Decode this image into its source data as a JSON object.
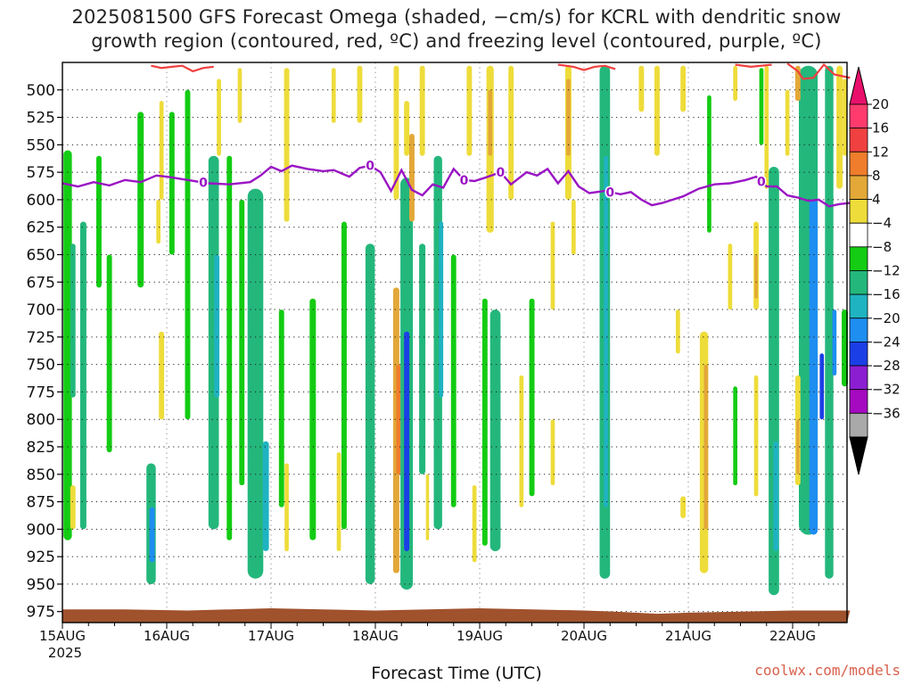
{
  "title_line1": "2025081500 GFS Forecast Omega (shaded, −cm/s) for KCRL with dendritic snow",
  "title_line2": "growth region (contoured, red, ºC) and freezing level (contoured, purple, ºC)",
  "credit": "coolwx.com/models",
  "chart_data": {
    "type": "heatmap",
    "xlabel": "Forecast Time (UTC)",
    "x_ticks": [
      "15AUG",
      "16AUG",
      "17AUG",
      "18AUG",
      "19AUG",
      "20AUG",
      "21AUG",
      "22AUG"
    ],
    "x_year_label": "2025",
    "y_ticks": [
      500,
      525,
      550,
      575,
      600,
      625,
      650,
      675,
      700,
      725,
      750,
      775,
      800,
      825,
      850,
      875,
      900,
      925,
      950,
      975
    ],
    "ylim": [
      475,
      985
    ],
    "xlim": [
      0,
      7.55
    ],
    "colorbar": {
      "labels": [
        "20",
        "16",
        "12",
        "8",
        "4",
        "−4",
        "−8",
        "−12",
        "−16",
        "−20",
        "−24",
        "−28",
        "−32",
        "−36"
      ],
      "colors": [
        "#ff3b6e",
        "#f04040",
        "#ef7d2c",
        "#e3a838",
        "#eedc3a",
        "#ffffff",
        "#13cc13",
        "#23b77c",
        "#1fb3c1",
        "#1e8ef0",
        "#1b3fe6",
        "#8c1ed2",
        "#a50ac0",
        "#a9a9a9",
        "#000000"
      ],
      "top_arrow_color": "#e8106a",
      "bottom_arrow_color": "#000000"
    },
    "freezing_level": {
      "color": "#9a14c4",
      "label": "0",
      "points": [
        [
          0,
          585
        ],
        [
          0.15,
          588
        ],
        [
          0.3,
          584
        ],
        [
          0.45,
          587
        ],
        [
          0.6,
          582
        ],
        [
          0.75,
          584
        ],
        [
          0.9,
          578
        ],
        [
          1.0,
          579
        ],
        [
          1.2,
          582
        ],
        [
          1.4,
          585
        ],
        [
          1.6,
          586
        ],
        [
          1.8,
          584
        ],
        [
          1.9,
          578
        ],
        [
          2.0,
          570
        ],
        [
          2.1,
          574
        ],
        [
          2.2,
          569
        ],
        [
          2.35,
          572
        ],
        [
          2.5,
          574
        ],
        [
          2.6,
          573
        ],
        [
          2.75,
          579
        ],
        [
          2.85,
          571
        ],
        [
          2.95,
          569
        ],
        [
          3.05,
          575
        ],
        [
          3.15,
          592
        ],
        [
          3.25,
          573
        ],
        [
          3.35,
          591
        ],
        [
          3.45,
          596
        ],
        [
          3.55,
          586
        ],
        [
          3.65,
          589
        ],
        [
          3.75,
          572
        ],
        [
          3.85,
          582
        ],
        [
          3.95,
          583
        ],
        [
          4.05,
          580
        ],
        [
          4.2,
          575
        ],
        [
          4.3,
          586
        ],
        [
          4.45,
          575
        ],
        [
          4.55,
          578
        ],
        [
          4.65,
          572
        ],
        [
          4.75,
          585
        ],
        [
          4.85,
          574
        ],
        [
          4.95,
          588
        ],
        [
          5.05,
          594
        ],
        [
          5.2,
          592
        ],
        [
          5.35,
          595
        ],
        [
          5.45,
          593
        ],
        [
          5.55,
          600
        ],
        [
          5.65,
          605
        ],
        [
          5.75,
          603
        ],
        [
          5.85,
          600
        ],
        [
          5.95,
          597
        ],
        [
          6.1,
          590
        ],
        [
          6.25,
          586
        ],
        [
          6.4,
          585
        ],
        [
          6.55,
          582
        ],
        [
          6.65,
          579
        ],
        [
          6.75,
          588
        ],
        [
          6.85,
          588
        ],
        [
          6.95,
          596
        ],
        [
          7.05,
          598
        ],
        [
          7.15,
          601
        ],
        [
          7.25,
          600
        ],
        [
          7.35,
          606
        ],
        [
          7.45,
          604
        ],
        [
          7.55,
          603
        ]
      ],
      "label_x": [
        1.35,
        2.95,
        3.85,
        4.2,
        5.25,
        6.7
      ]
    },
    "dgz_top": {
      "color": "#f04040",
      "segments": [
        [
          [
            0.85,
            478
          ],
          [
            0.95,
            480
          ],
          [
            1.05,
            479
          ],
          [
            1.15,
            478
          ],
          [
            1.25,
            483
          ],
          [
            1.35,
            480
          ],
          [
            1.45,
            479
          ]
        ],
        [
          [
            4.75,
            477
          ],
          [
            4.9,
            479
          ],
          [
            5.0,
            482
          ],
          [
            5.1,
            479
          ],
          [
            5.2,
            478
          ],
          [
            5.3,
            481
          ]
        ],
        [
          [
            6.45,
            477
          ],
          [
            6.6,
            479
          ],
          [
            6.8,
            477
          ]
        ],
        [
          [
            6.95,
            476
          ],
          [
            7.05,
            483
          ],
          [
            7.1,
            490
          ],
          [
            7.2,
            489
          ],
          [
            7.3,
            477
          ],
          [
            7.4,
            486
          ],
          [
            7.5,
            488
          ],
          [
            7.55,
            489
          ]
        ]
      ]
    },
    "omega_cells": [
      {
        "x": 0.05,
        "p0": 555,
        "p1": 910,
        "w": 0.08,
        "v": -6
      },
      {
        "x": 0.1,
        "p0": 640,
        "p1": 780,
        "w": 0.05,
        "v": -10
      },
      {
        "x": 0.2,
        "p0": 620,
        "p1": 900,
        "w": 0.06,
        "v": -8
      },
      {
        "x": 0.35,
        "p0": 560,
        "p1": 680,
        "w": 0.05,
        "v": -6
      },
      {
        "x": 0.45,
        "p0": 650,
        "p1": 830,
        "w": 0.05,
        "v": -7
      },
      {
        "x": 0.75,
        "p0": 520,
        "p1": 680,
        "w": 0.06,
        "v": -7
      },
      {
        "x": 0.85,
        "p0": 840,
        "p1": 950,
        "w": 0.09,
        "v": -8
      },
      {
        "x": 0.86,
        "p0": 880,
        "p1": 930,
        "w": 0.05,
        "v": -16
      },
      {
        "x": 1.05,
        "p0": 520,
        "p1": 650,
        "w": 0.05,
        "v": -6
      },
      {
        "x": 1.2,
        "p0": 500,
        "p1": 800,
        "w": 0.05,
        "v": -7
      },
      {
        "x": 1.45,
        "p0": 560,
        "p1": 900,
        "w": 0.1,
        "v": -8
      },
      {
        "x": 1.48,
        "p0": 650,
        "p1": 780,
        "w": 0.05,
        "v": -14
      },
      {
        "x": 1.6,
        "p0": 560,
        "p1": 910,
        "w": 0.05,
        "v": -6
      },
      {
        "x": 1.72,
        "p0": 600,
        "p1": 860,
        "w": 0.05,
        "v": -6
      },
      {
        "x": 1.85,
        "p0": 590,
        "p1": 945,
        "w": 0.15,
        "v": -8
      },
      {
        "x": 1.95,
        "p0": 820,
        "p1": 920,
        "w": 0.06,
        "v": -12
      },
      {
        "x": 2.1,
        "p0": 700,
        "p1": 880,
        "w": 0.05,
        "v": -6
      },
      {
        "x": 2.4,
        "p0": 690,
        "p1": 910,
        "w": 0.06,
        "v": -7
      },
      {
        "x": 2.7,
        "p0": 620,
        "p1": 900,
        "w": 0.05,
        "v": -6
      },
      {
        "x": 2.95,
        "p0": 640,
        "p1": 950,
        "w": 0.09,
        "v": -8
      },
      {
        "x": 3.3,
        "p0": 580,
        "p1": 955,
        "w": 0.12,
        "v": -10
      },
      {
        "x": 3.3,
        "p0": 720,
        "p1": 920,
        "w": 0.05,
        "v": -22
      },
      {
        "x": 3.45,
        "p0": 640,
        "p1": 850,
        "w": 0.06,
        "v": -8
      },
      {
        "x": 3.6,
        "p0": 560,
        "p1": 900,
        "w": 0.08,
        "v": -10
      },
      {
        "x": 3.63,
        "p0": 620,
        "p1": 780,
        "w": 0.04,
        "v": -15
      },
      {
        "x": 3.75,
        "p0": 650,
        "p1": 880,
        "w": 0.05,
        "v": -7
      },
      {
        "x": 4.05,
        "p0": 690,
        "p1": 915,
        "w": 0.05,
        "v": -6
      },
      {
        "x": 4.15,
        "p0": 700,
        "p1": 920,
        "w": 0.1,
        "v": -8
      },
      {
        "x": 4.5,
        "p0": 690,
        "p1": 870,
        "w": 0.05,
        "v": -6
      },
      {
        "x": 5.2,
        "p0": 478,
        "p1": 945,
        "w": 0.1,
        "v": -8
      },
      {
        "x": 5.21,
        "p0": 560,
        "p1": 880,
        "w": 0.04,
        "v": -13
      },
      {
        "x": 6.2,
        "p0": 505,
        "p1": 630,
        "w": 0.04,
        "v": -7
      },
      {
        "x": 6.45,
        "p0": 770,
        "p1": 860,
        "w": 0.04,
        "v": -7
      },
      {
        "x": 6.7,
        "p0": 480,
        "p1": 550,
        "w": 0.04,
        "v": -6
      },
      {
        "x": 6.82,
        "p0": 570,
        "p1": 960,
        "w": 0.1,
        "v": -8
      },
      {
        "x": 6.84,
        "p0": 820,
        "p1": 920,
        "w": 0.05,
        "v": -15
      },
      {
        "x": 7.15,
        "p0": 478,
        "p1": 905,
        "w": 0.18,
        "v": -11
      },
      {
        "x": 7.2,
        "p0": 600,
        "p1": 905,
        "w": 0.08,
        "v": -17
      },
      {
        "x": 7.28,
        "p0": 740,
        "p1": 800,
        "w": 0.04,
        "v": -22
      },
      {
        "x": 7.35,
        "p0": 478,
        "p1": 945,
        "w": 0.08,
        "v": -8
      },
      {
        "x": 7.4,
        "p0": 700,
        "p1": 760,
        "w": 0.04,
        "v": -18
      },
      {
        "x": 7.5,
        "p0": 700,
        "p1": 770,
        "w": 0.06,
        "v": -7
      },
      {
        "x": 0.95,
        "p0": 510,
        "p1": 600,
        "w": 0.04,
        "v": 6
      },
      {
        "x": 0.92,
        "p0": 600,
        "p1": 640,
        "w": 0.04,
        "v": 6
      },
      {
        "x": 0.95,
        "p0": 720,
        "p1": 800,
        "w": 0.05,
        "v": 5
      },
      {
        "x": 0.1,
        "p0": 860,
        "p1": 900,
        "w": 0.05,
        "v": 5
      },
      {
        "x": 1.5,
        "p0": 490,
        "p1": 560,
        "w": 0.04,
        "v": 5
      },
      {
        "x": 1.7,
        "p0": 480,
        "p1": 530,
        "w": 0.04,
        "v": 5
      },
      {
        "x": 2.6,
        "p0": 480,
        "p1": 530,
        "w": 0.04,
        "v": 5
      },
      {
        "x": 2.15,
        "p0": 480,
        "p1": 620,
        "w": 0.05,
        "v": 5
      },
      {
        "x": 2.15,
        "p0": 840,
        "p1": 920,
        "w": 0.04,
        "v": 5
      },
      {
        "x": 2.65,
        "p0": 830,
        "p1": 920,
        "w": 0.04,
        "v": 5
      },
      {
        "x": 2.85,
        "p0": 478,
        "p1": 530,
        "w": 0.05,
        "v": 6
      },
      {
        "x": 3.2,
        "p0": 478,
        "p1": 600,
        "w": 0.05,
        "v": 6
      },
      {
        "x": 3.3,
        "p0": 510,
        "p1": 560,
        "w": 0.05,
        "v": 6
      },
      {
        "x": 3.2,
        "p0": 680,
        "p1": 940,
        "w": 0.06,
        "v": 8
      },
      {
        "x": 3.22,
        "p0": 750,
        "p1": 850,
        "w": 0.04,
        "v": 12
      },
      {
        "x": 3.35,
        "p0": 540,
        "p1": 620,
        "w": 0.05,
        "v": 9
      },
      {
        "x": 3.45,
        "p0": 478,
        "p1": 560,
        "w": 0.05,
        "v": 5
      },
      {
        "x": 3.5,
        "p0": 850,
        "p1": 910,
        "w": 0.03,
        "v": 5
      },
      {
        "x": 3.9,
        "p0": 478,
        "p1": 560,
        "w": 0.05,
        "v": 5
      },
      {
        "x": 3.95,
        "p0": 860,
        "p1": 930,
        "w": 0.04,
        "v": 5
      },
      {
        "x": 4.1,
        "p0": 478,
        "p1": 630,
        "w": 0.07,
        "v": 5
      },
      {
        "x": 4.1,
        "p0": 500,
        "p1": 560,
        "w": 0.04,
        "v": 10
      },
      {
        "x": 4.3,
        "p0": 478,
        "p1": 600,
        "w": 0.05,
        "v": 5
      },
      {
        "x": 4.4,
        "p0": 760,
        "p1": 880,
        "w": 0.04,
        "v": 5
      },
      {
        "x": 4.7,
        "p0": 620,
        "p1": 700,
        "w": 0.04,
        "v": 5
      },
      {
        "x": 4.7,
        "p0": 800,
        "p1": 860,
        "w": 0.04,
        "v": 5
      },
      {
        "x": 4.85,
        "p0": 478,
        "p1": 600,
        "w": 0.06,
        "v": 6
      },
      {
        "x": 4.85,
        "p0": 490,
        "p1": 560,
        "w": 0.04,
        "v": 10
      },
      {
        "x": 4.9,
        "p0": 600,
        "p1": 650,
        "w": 0.04,
        "v": 5
      },
      {
        "x": 5.55,
        "p0": 478,
        "p1": 520,
        "w": 0.05,
        "v": 5
      },
      {
        "x": 5.7,
        "p0": 478,
        "p1": 560,
        "w": 0.05,
        "v": 5
      },
      {
        "x": 5.95,
        "p0": 478,
        "p1": 520,
        "w": 0.05,
        "v": 5
      },
      {
        "x": 5.9,
        "p0": 700,
        "p1": 740,
        "w": 0.04,
        "v": 5
      },
      {
        "x": 5.95,
        "p0": 870,
        "p1": 890,
        "w": 0.05,
        "v": 5
      },
      {
        "x": 6.15,
        "p0": 720,
        "p1": 940,
        "w": 0.08,
        "v": 6
      },
      {
        "x": 6.17,
        "p0": 750,
        "p1": 900,
        "w": 0.04,
        "v": 11
      },
      {
        "x": 6.4,
        "p0": 640,
        "p1": 700,
        "w": 0.04,
        "v": 5
      },
      {
        "x": 6.45,
        "p0": 478,
        "p1": 510,
        "w": 0.04,
        "v": 5
      },
      {
        "x": 6.65,
        "p0": 620,
        "p1": 700,
        "w": 0.05,
        "v": 5
      },
      {
        "x": 6.65,
        "p0": 650,
        "p1": 690,
        "w": 0.03,
        "v": 10
      },
      {
        "x": 6.65,
        "p0": 760,
        "p1": 870,
        "w": 0.04,
        "v": 5
      },
      {
        "x": 6.75,
        "p0": 478,
        "p1": 590,
        "w": 0.04,
        "v": 5
      },
      {
        "x": 6.95,
        "p0": 500,
        "p1": 560,
        "w": 0.04,
        "v": 5
      },
      {
        "x": 7.05,
        "p0": 760,
        "p1": 860,
        "w": 0.05,
        "v": 6
      },
      {
        "x": 7.05,
        "p0": 800,
        "p1": 850,
        "w": 0.03,
        "v": 11
      },
      {
        "x": 7.05,
        "p0": 478,
        "p1": 510,
        "w": 0.05,
        "v": 10
      },
      {
        "x": 7.45,
        "p0": 478,
        "p1": 590,
        "w": 0.06,
        "v": 6
      },
      {
        "x": 7.5,
        "p0": 490,
        "p1": 560,
        "w": 0.04,
        "v": 5
      }
    ],
    "ground": {
      "color": "#a0522d",
      "surface_points": [
        [
          0,
          973
        ],
        [
          0.6,
          973
        ],
        [
          1.2,
          974
        ],
        [
          2.0,
          972
        ],
        [
          2.5,
          973
        ],
        [
          3.0,
          974
        ],
        [
          3.5,
          973
        ],
        [
          4.0,
          972
        ],
        [
          4.5,
          973
        ],
        [
          5.0,
          974
        ],
        [
          5.3,
          975
        ],
        [
          5.7,
          977
        ],
        [
          6.0,
          976
        ],
        [
          6.5,
          975
        ],
        [
          7.0,
          974
        ],
        [
          7.55,
          974
        ]
      ]
    }
  }
}
